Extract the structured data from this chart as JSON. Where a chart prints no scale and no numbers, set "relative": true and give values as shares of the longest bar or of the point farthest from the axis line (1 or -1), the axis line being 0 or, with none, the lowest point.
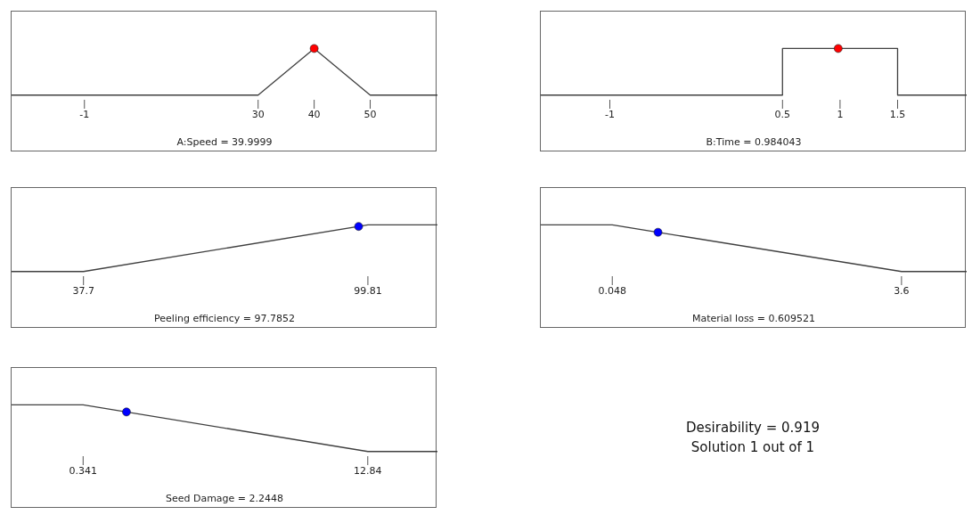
{
  "chart_data": [
    {
      "type": "line",
      "relative": true,
      "xlabel": "A:Speed = 39.9999",
      "xlim": [
        -14,
        62
      ],
      "xticks": [
        -1,
        30,
        40,
        50
      ],
      "grid": false,
      "legend": false,
      "series": [
        {
          "type": "line",
          "color": "#404040",
          "marker": "none",
          "x": [
            -14,
            30,
            40,
            50,
            62
          ],
          "values": [
            0,
            0,
            1,
            0,
            0
          ]
        },
        {
          "type": "scatter",
          "color": "#ff0000",
          "marker": "circle",
          "x": [
            39.9999
          ],
          "values": [
            1
          ]
        }
      ]
    },
    {
      "type": "line",
      "relative": true,
      "xlabel": "B:Time = 0.984043",
      "xlim": [
        -1.6,
        2.1
      ],
      "xticks": [
        -1,
        0.5,
        1,
        1.5
      ],
      "grid": false,
      "legend": false,
      "series": [
        {
          "type": "line",
          "color": "#404040",
          "marker": "none",
          "x": [
            -1.6,
            0.5,
            0.5,
            1.5,
            1.5,
            2.1
          ],
          "values": [
            0,
            0,
            1,
            1,
            0,
            0
          ]
        },
        {
          "type": "scatter",
          "color": "#ff0000",
          "marker": "circle",
          "x": [
            0.984043
          ],
          "values": [
            1
          ]
        }
      ]
    },
    {
      "type": "line",
      "relative": true,
      "xlabel": "Peeling efficiency = 97.7852",
      "xlim": [
        22,
        115
      ],
      "xticks": [
        37.7,
        99.81
      ],
      "grid": false,
      "legend": false,
      "series": [
        {
          "type": "line",
          "color": "#404040",
          "marker": "none",
          "x": [
            22,
            37.7,
            99.81,
            115
          ],
          "values": [
            0,
            0,
            1,
            1
          ]
        },
        {
          "type": "scatter",
          "color": "#0000ff",
          "marker": "circle",
          "x": [
            97.7852
          ],
          "values": [
            0.967
          ]
        }
      ]
    },
    {
      "type": "line",
      "relative": true,
      "xlabel": "Material loss = 0.609521",
      "xlim": [
        -0.83,
        4.4
      ],
      "xticks": [
        0.048,
        3.6
      ],
      "grid": false,
      "legend": false,
      "series": [
        {
          "type": "line",
          "color": "#404040",
          "marker": "none",
          "x": [
            -0.83,
            0.048,
            3.6,
            4.4
          ],
          "values": [
            1,
            1,
            0,
            0
          ]
        },
        {
          "type": "scatter",
          "color": "#0000ff",
          "marker": "circle",
          "x": [
            0.609521
          ],
          "values": [
            0.842
          ]
        }
      ]
    },
    {
      "type": "line",
      "relative": true,
      "xlabel": "Seed Damage = 2.2448",
      "xlim": [
        -2.8,
        15.9
      ],
      "xticks": [
        0.341,
        12.84
      ],
      "grid": false,
      "legend": false,
      "series": [
        {
          "type": "line",
          "color": "#404040",
          "marker": "none",
          "x": [
            -2.8,
            0.341,
            12.84,
            15.9
          ],
          "values": [
            1,
            1,
            0,
            0
          ]
        },
        {
          "type": "scatter",
          "color": "#0000ff",
          "marker": "circle",
          "x": [
            2.2448
          ],
          "values": [
            0.848
          ]
        }
      ]
    },
    {
      "type": "other",
      "annotations": [
        "Desirability = 0.919",
        "Solution 1 out of 1"
      ]
    }
  ]
}
